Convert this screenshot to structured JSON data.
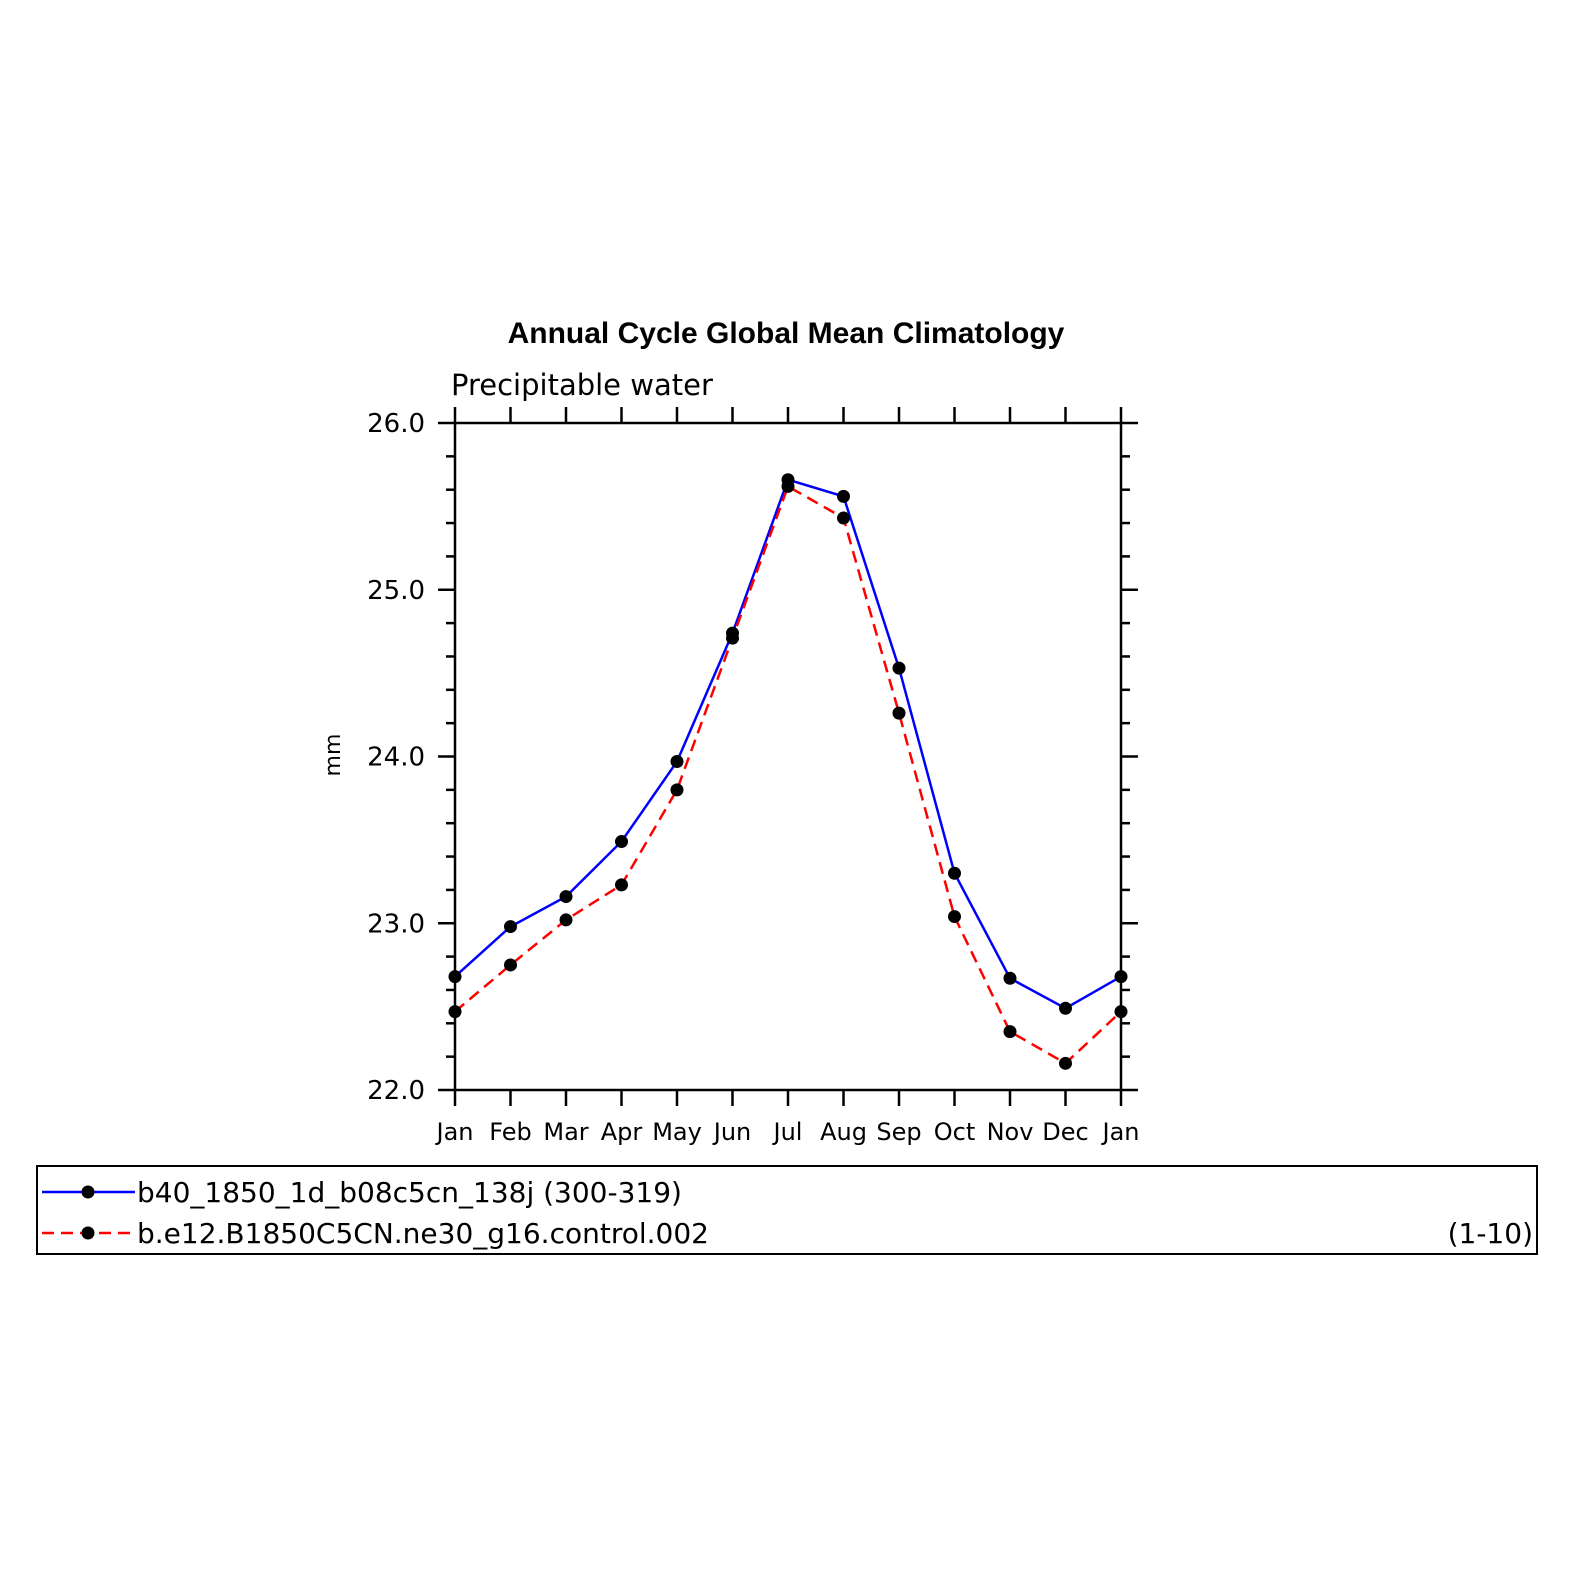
{
  "chart_data": {
    "type": "line",
    "title": "Annual Cycle Global Mean Climatology",
    "subtitle": "Precipitable water",
    "ylabel": "mm",
    "xlabel": "",
    "categories": [
      "Jan",
      "Feb",
      "Mar",
      "Apr",
      "May",
      "Jun",
      "Jul",
      "Aug",
      "Sep",
      "Oct",
      "Nov",
      "Dec",
      "Jan"
    ],
    "ylim": [
      22.0,
      26.0
    ],
    "yticks": [
      "22.0",
      "23.0",
      "24.0",
      "25.0",
      "26.0"
    ],
    "grid": false,
    "legend_position": "bottom",
    "series": [
      {
        "name": "b40_1850_1d_b08c5cn_138j (300-319)",
        "range_label": "",
        "color": "#0000ff",
        "line_style": "solid",
        "marker": "filled-circle",
        "values": [
          22.68,
          22.98,
          23.16,
          23.49,
          23.97,
          24.74,
          25.66,
          25.56,
          24.53,
          23.3,
          22.67,
          22.49,
          22.68
        ]
      },
      {
        "name": "b.e12.B1850C5CN.ne30_g16.control.002",
        "range_label": "(1-10)",
        "color": "#ff0000",
        "line_style": "dashed",
        "marker": "filled-circle",
        "values": [
          22.47,
          22.75,
          23.02,
          23.23,
          23.8,
          24.71,
          25.62,
          25.43,
          24.26,
          23.04,
          22.35,
          22.16,
          22.47
        ]
      }
    ]
  }
}
